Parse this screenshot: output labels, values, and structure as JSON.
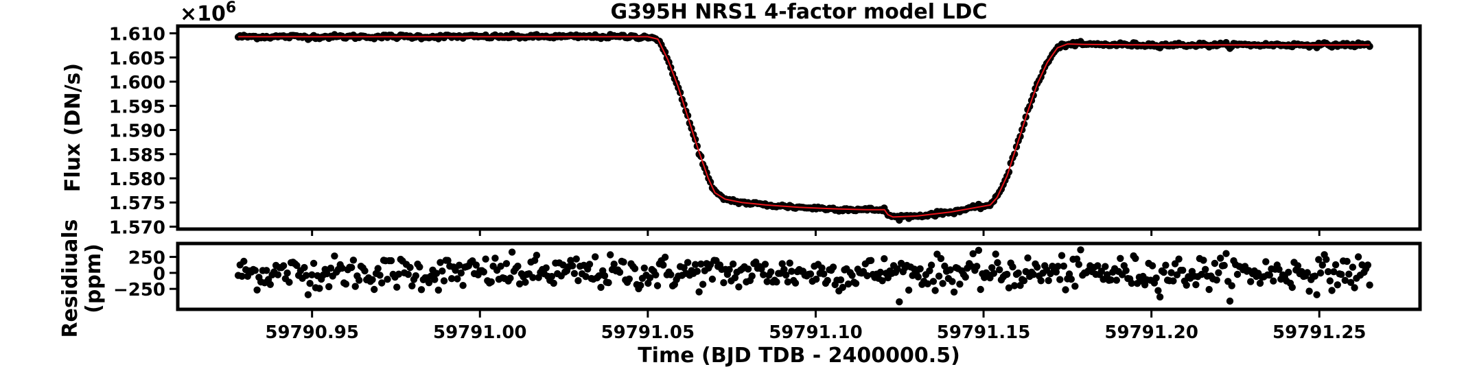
{
  "chart_data": [
    {
      "type": "scatter",
      "title": "G395H NRS1 4-factor model LDC",
      "ylabel": "Flux (DN/s)",
      "y_multiplier_label": "×10",
      "y_multiplier_exp": "6",
      "xlim": [
        59790.91,
        59791.28
      ],
      "ylim": [
        1.5695,
        1.6115
      ],
      "x_ticks": [
        59790.95,
        59791.0,
        59791.05,
        59791.1,
        59791.15,
        59791.2,
        59791.25
      ],
      "y_ticks": [
        1.57,
        1.575,
        1.58,
        1.585,
        1.59,
        1.595,
        1.6,
        1.605,
        1.61
      ],
      "y_tick_labels": [
        "1.570",
        "1.575",
        "1.580",
        "1.585",
        "1.590",
        "1.595",
        "1.600",
        "1.605",
        "1.610"
      ],
      "marker_color": "#000000",
      "model_color": "#e8141a",
      "series": [
        {
          "role": "data",
          "x_start": 59790.928,
          "x_end": 59791.265,
          "n_points": 600
        },
        {
          "role": "model",
          "x": [
            59790.928,
            59790.96,
            59791.0,
            59791.04,
            59791.05,
            59791.053,
            59791.056,
            59791.059,
            59791.062,
            59791.065,
            59791.068,
            59791.07,
            59791.073,
            59791.078,
            59791.085,
            59791.095,
            59791.105,
            59791.115,
            59791.1205,
            59791.1215,
            59791.123,
            59791.13,
            59791.14,
            59791.148,
            59791.152,
            59791.154,
            59791.157,
            59791.16,
            59791.163,
            59791.166,
            59791.169,
            59791.172,
            59791.175,
            59791.18,
            59791.2,
            59791.23,
            59791.265
          ],
          "y": [
            1.6093,
            1.6093,
            1.6093,
            1.6093,
            1.6093,
            1.6088,
            1.6045,
            1.599,
            1.5925,
            1.586,
            1.58,
            1.577,
            1.5757,
            1.575,
            1.5745,
            1.574,
            1.5737,
            1.5735,
            1.5735,
            1.5725,
            1.572,
            1.5722,
            1.573,
            1.574,
            1.5745,
            1.576,
            1.5805,
            1.587,
            1.5935,
            1.5995,
            1.604,
            1.607,
            1.6078,
            1.6077,
            1.6076,
            1.6076,
            1.6076
          ]
        }
      ]
    },
    {
      "type": "scatter",
      "ylabel_line1": "Residiuals",
      "ylabel_line2": "(ppm)",
      "xlabel": "Time (BJD TDB - 2400000.5)",
      "xlim": [
        59790.91,
        59791.28
      ],
      "ylim": [
        -570,
        460
      ],
      "x_ticks": [
        59790.95,
        59791.0,
        59791.05,
        59791.1,
        59791.15,
        59791.2,
        59791.25
      ],
      "x_tick_labels": [
        "59790.95",
        "59791.00",
        "59791.05",
        "59791.10",
        "59791.15",
        "59791.20",
        "59791.25"
      ],
      "y_ticks": [
        250,
        0,
        -250
      ],
      "y_tick_labels": [
        "250",
        "0",
        "−250"
      ],
      "marker_color": "#000000",
      "series": [
        {
          "role": "residuals",
          "x_start": 59790.928,
          "x_end": 59791.265,
          "n_points": 600,
          "approx_std_ppm": 130
        }
      ]
    }
  ]
}
